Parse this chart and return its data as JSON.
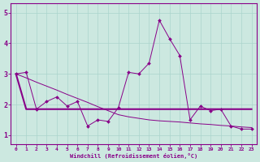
{
  "xlabel": "Windchill (Refroidissement éolien,°C)",
  "bg_color": "#cce8e0",
  "line_color": "#880088",
  "grid_color": "#aad4cc",
  "hours": [
    0,
    1,
    2,
    3,
    4,
    5,
    6,
    7,
    8,
    9,
    10,
    11,
    12,
    13,
    14,
    15,
    16,
    17,
    18,
    19,
    20,
    21,
    22,
    23
  ],
  "series1": [
    3.0,
    3.05,
    1.85,
    2.1,
    2.25,
    1.95,
    2.1,
    1.3,
    1.5,
    1.45,
    1.9,
    3.05,
    3.0,
    3.35,
    4.75,
    4.15,
    3.6,
    1.5,
    1.95,
    1.8,
    1.85,
    1.3,
    1.2,
    1.2
  ],
  "series2": [
    3.0,
    1.85,
    1.85,
    1.85,
    1.85,
    1.85,
    1.85,
    1.85,
    1.85,
    1.85,
    1.85,
    1.85,
    1.85,
    1.85,
    1.85,
    1.85,
    1.85,
    1.85,
    1.85,
    1.85,
    1.85,
    1.85,
    1.85,
    1.85
  ],
  "series3": [
    3.0,
    2.87,
    2.73,
    2.6,
    2.47,
    2.33,
    2.2,
    2.07,
    1.93,
    1.8,
    1.67,
    1.6,
    1.55,
    1.5,
    1.47,
    1.45,
    1.43,
    1.4,
    1.37,
    1.35,
    1.32,
    1.3,
    1.27,
    1.25
  ],
  "ylim": [
    0.7,
    5.3
  ],
  "xlim": [
    -0.5,
    23.5
  ],
  "yticks": [
    1,
    2,
    3,
    4,
    5
  ],
  "xticks": [
    0,
    1,
    2,
    3,
    4,
    5,
    6,
    7,
    8,
    9,
    10,
    11,
    12,
    13,
    14,
    15,
    16,
    17,
    18,
    19,
    20,
    21,
    22,
    23
  ]
}
